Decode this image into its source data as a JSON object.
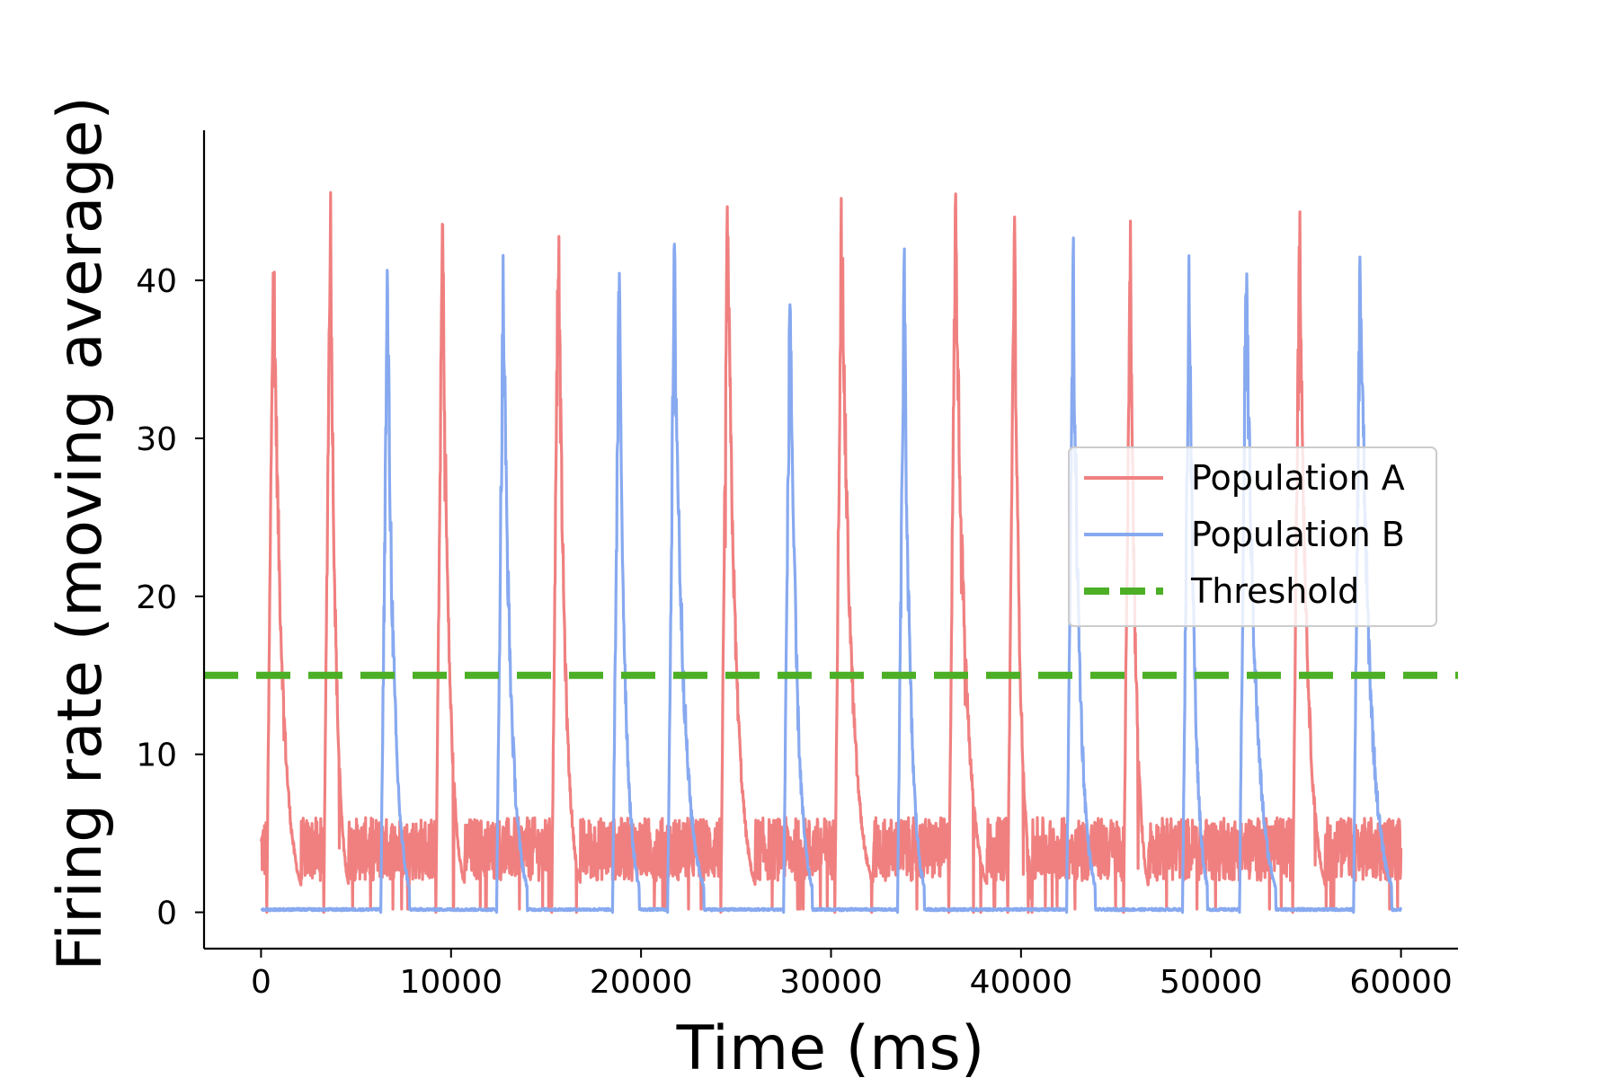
{
  "chart_data": {
    "type": "line",
    "xlabel": "Time (ms)",
    "ylabel": "Firing rate (moving average)",
    "xlim": [
      -3000,
      63000
    ],
    "ylim": [
      -2.3,
      49.5
    ],
    "xticks": [
      0,
      10000,
      20000,
      30000,
      40000,
      50000,
      60000
    ],
    "yticks": [
      0,
      10,
      20,
      30,
      40
    ],
    "grid": false,
    "legend": {
      "position": "center-right",
      "entries": [
        "Population A",
        "Population B",
        "Threshold"
      ]
    },
    "colors": {
      "population_a": "#f08080",
      "population_b": "#87a9f0",
      "threshold": "#4caf26"
    },
    "threshold": 15,
    "series": [
      {
        "name": "Population A",
        "style": "solid",
        "bursts": [
          {
            "start": 300,
            "end": 2100,
            "peak": 45.3
          },
          {
            "start": 3300,
            "end": 4600,
            "peak": 47.2
          },
          {
            "start": 9200,
            "end": 10700,
            "peak": 46.1
          },
          {
            "start": 15300,
            "end": 16800,
            "peak": 45.8
          },
          {
            "start": 24200,
            "end": 26000,
            "peak": 46.3
          },
          {
            "start": 30200,
            "end": 32200,
            "peak": 46.5
          },
          {
            "start": 36200,
            "end": 38200,
            "peak": 46.6
          },
          {
            "start": 39300,
            "end": 40600,
            "peak": 46.1
          },
          {
            "start": 45400,
            "end": 46700,
            "peak": 44.8
          },
          {
            "start": 54300,
            "end": 56000,
            "peak": 46.8
          }
        ],
        "inter_burst_level": [
          2,
          6
        ]
      },
      {
        "name": "Population B",
        "style": "solid",
        "bursts": [
          {
            "start": 6300,
            "end": 7800,
            "peak": 41.9
          },
          {
            "start": 12400,
            "end": 14000,
            "peak": 42.3
          },
          {
            "start": 18500,
            "end": 19900,
            "peak": 42.0
          },
          {
            "start": 21400,
            "end": 23300,
            "peak": 43.1
          },
          {
            "start": 27500,
            "end": 29000,
            "peak": 42.1
          },
          {
            "start": 33500,
            "end": 34900,
            "peak": 42.2
          },
          {
            "start": 42400,
            "end": 43900,
            "peak": 42.8
          },
          {
            "start": 48500,
            "end": 49800,
            "peak": 43.7
          },
          {
            "start": 51500,
            "end": 53400,
            "peak": 43.5
          },
          {
            "start": 57500,
            "end": 59500,
            "peak": 43.7
          }
        ],
        "baseline": 0.1
      },
      {
        "name": "Threshold",
        "style": "dashed",
        "x": [
          -3000,
          63000
        ],
        "y": [
          15,
          15
        ]
      }
    ]
  }
}
